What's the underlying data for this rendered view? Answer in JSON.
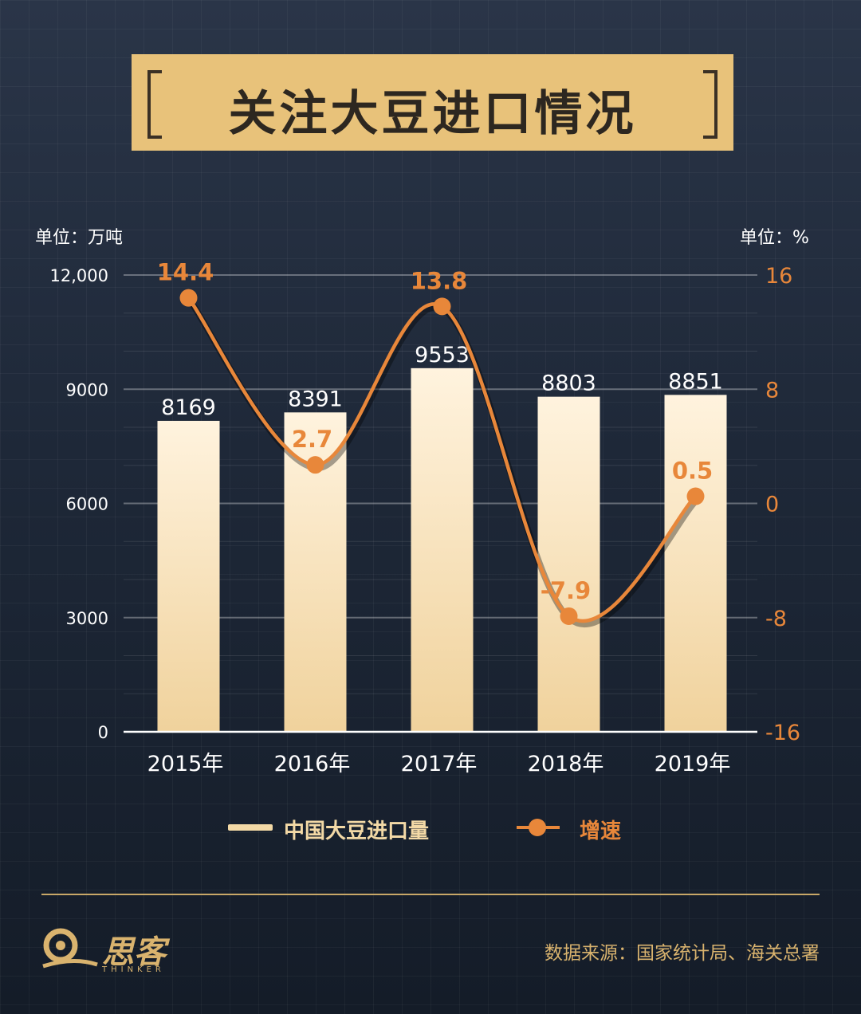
{
  "title": "关注大豆进口情况",
  "unit_left": "单位：万吨",
  "unit_right": "单位：%",
  "legend": {
    "bar_label": "中国大豆进口量",
    "line_label": "增速"
  },
  "source": "数据来源：国家统计局、海关总署",
  "logo": {
    "name": "思客",
    "sub": "THINKER"
  },
  "colors": {
    "bar": "#f3d9a6",
    "line": "#e8873a",
    "accent": "#e8c27a"
  },
  "chart_data": {
    "type": "bar",
    "categories": [
      "2015年",
      "2016年",
      "2017年",
      "2018年",
      "2019年"
    ],
    "series": [
      {
        "name": "中国大豆进口量",
        "type": "bar",
        "axis": "left",
        "values": [
          8169,
          8391,
          9553,
          8803,
          8851
        ]
      },
      {
        "name": "增速",
        "type": "line",
        "axis": "right",
        "values": [
          14.4,
          2.7,
          13.8,
          -7.9,
          0.5
        ]
      }
    ],
    "ylim_left": [
      0,
      12000
    ],
    "yticks_left": [
      0,
      3000,
      6000,
      9000,
      12000
    ],
    "ytick_labels_left": [
      "0",
      "3000",
      "6000",
      "9000",
      "12,000"
    ],
    "ylim_right": [
      -16,
      16
    ],
    "yticks_right": [
      -16,
      -8,
      0,
      8,
      16
    ],
    "ytick_labels_right": [
      "-16",
      "-8",
      "0",
      "8",
      "16"
    ],
    "grid": true,
    "legend_position": "bottom"
  }
}
